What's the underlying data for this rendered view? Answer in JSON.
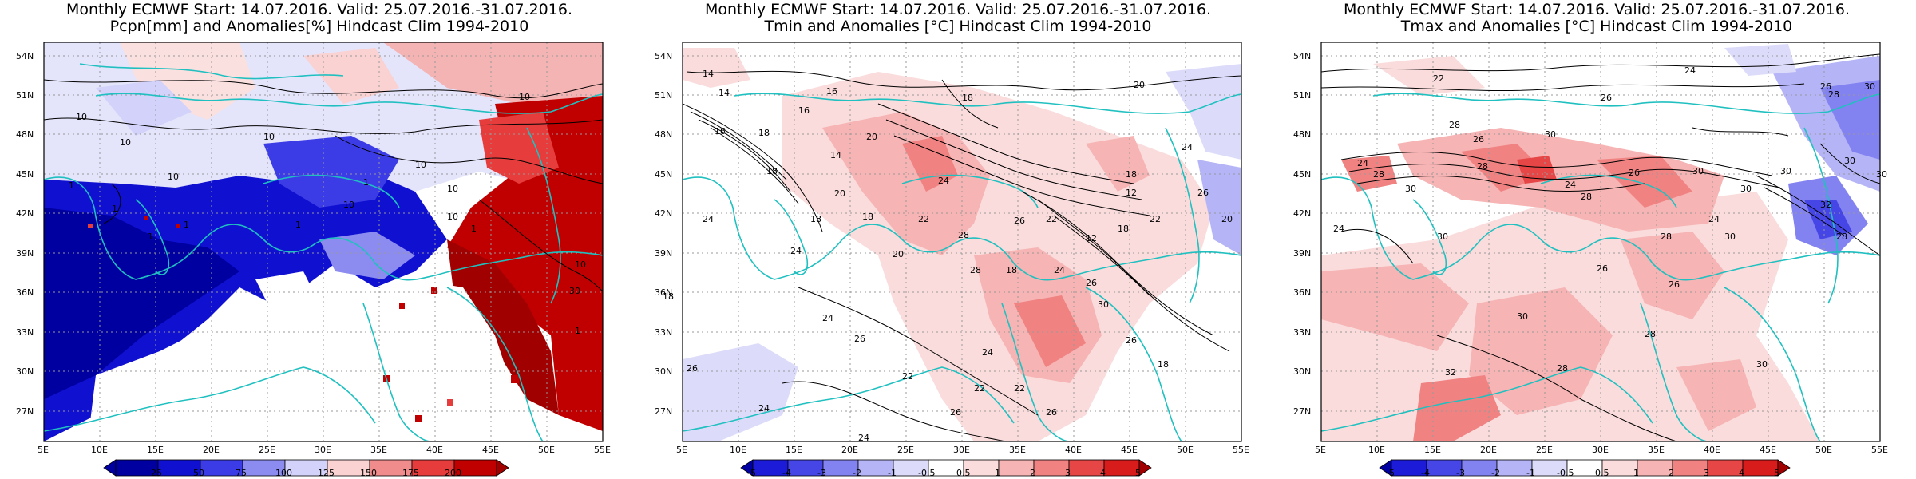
{
  "panels": [
    {
      "title_line1": "Monthly ECMWF Start: 14.07.2016. Valid: 25.07.2016.-31.07.2016.",
      "title_line2": "Pcpn[mm] and Anomalies[%] Hindcast Clim 1994-2010",
      "colorbar": {
        "labels": [
          "25",
          "50",
          "75",
          "100",
          "125",
          "150",
          "175",
          "200"
        ],
        "colors": [
          "#0000a0",
          "#1010d0",
          "#3c3ce6",
          "#8c8cf0",
          "#d2d2fa",
          "#ffffff",
          "#fad2d2",
          "#f08c8c",
          "#e63c3c",
          "#c00000",
          "#a00000"
        ]
      },
      "contour_labels": [
        "10",
        "10",
        "10",
        "10",
        "10",
        "10",
        "10",
        "10",
        "10",
        "10",
        "30",
        "1",
        "1",
        "1",
        "1",
        "1",
        "1",
        "1",
        "1"
      ]
    },
    {
      "title_line1": "Monthly ECMWF Start: 14.07.2016. Valid: 25.07.2016.-31.07.2016.",
      "title_line2": "Tmin and Anomalies [°C] Hindcast Clim 1994-2010",
      "colorbar": {
        "labels": [
          "-5",
          "-4",
          "-3",
          "-2",
          "-1",
          "-0.5",
          "0.5",
          "1",
          "2",
          "3",
          "4",
          "5"
        ],
        "colors": [
          "#0000a0",
          "#1c1cd8",
          "#4646e6",
          "#8282f0",
          "#b4b4f6",
          "#dcdcfa",
          "#ffffff",
          "#fadcdc",
          "#f6b4b4",
          "#f08282",
          "#e64646",
          "#d81c1c",
          "#a00000"
        ]
      },
      "contour_labels": [
        "14",
        "16",
        "14",
        "18",
        "16",
        "20",
        "18",
        "16",
        "20",
        "14",
        "18",
        "20",
        "18",
        "24",
        "22",
        "18",
        "20",
        "24",
        "26",
        "24",
        "28",
        "18",
        "22",
        "12",
        "24",
        "26",
        "18",
        "22",
        "24",
        "18",
        "26",
        "24",
        "26",
        "22",
        "24",
        "30",
        "26",
        "24",
        "28",
        "26",
        "22",
        "26",
        "24",
        "18",
        "12",
        "22",
        "26",
        "18",
        "20"
      ]
    },
    {
      "title_line1": "Monthly ECMWF Start: 14.07.2016. Valid: 25.07.2016.-31.07.2016.",
      "title_line2": "Tmax and Anomalies [°C] Hindcast Clim 1994-2010",
      "colorbar": {
        "labels": [
          "-5",
          "-4",
          "-3",
          "-2",
          "-1",
          "-0.5",
          "0.5",
          "1",
          "2",
          "3",
          "4",
          "5"
        ],
        "colors": [
          "#0000a0",
          "#1c1cd8",
          "#4646e6",
          "#8282f0",
          "#b4b4f6",
          "#dcdcfa",
          "#ffffff",
          "#fadcdc",
          "#f6b4b4",
          "#f08282",
          "#e64646",
          "#d81c1c",
          "#a00000"
        ]
      },
      "contour_labels": [
        "22",
        "24",
        "26",
        "26",
        "28",
        "30",
        "28",
        "26",
        "30",
        "24",
        "28",
        "30",
        "28",
        "30",
        "26",
        "24",
        "28",
        "30",
        "30",
        "24",
        "26",
        "30",
        "28",
        "30",
        "32",
        "30",
        "28",
        "24",
        "26",
        "32",
        "28",
        "30",
        "28",
        "30",
        "30"
      ]
    }
  ],
  "map": {
    "lat_labels": [
      "54N",
      "51N",
      "48N",
      "45N",
      "42N",
      "39N",
      "36N",
      "33N",
      "30N",
      "27N"
    ],
    "lon_labels": [
      "5E",
      "10E",
      "15E",
      "20E",
      "25E",
      "30E",
      "35E",
      "40E",
      "45E",
      "50E",
      "55E"
    ]
  }
}
